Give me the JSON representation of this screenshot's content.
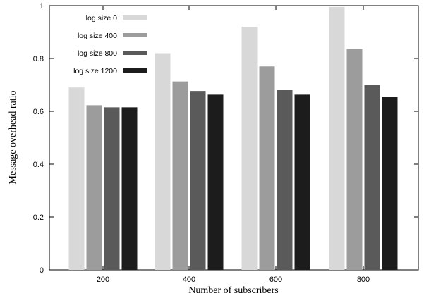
{
  "chart_data": {
    "type": "bar",
    "xlabel": "Number of subscribers",
    "ylabel": "Message overhead ratio",
    "categories": [
      "200",
      "400",
      "600",
      "800"
    ],
    "ylim": [
      0,
      1
    ],
    "yticks": [
      "0",
      "0.2",
      "0.4",
      "0.6",
      "0.8",
      "1"
    ],
    "legend_position": "top-left",
    "grid": false,
    "series": [
      {
        "name": "log size 0",
        "color": "#d8d8d8",
        "values": [
          0.69,
          0.82,
          0.92,
          0.995
        ]
      },
      {
        "name": "log size 400",
        "color": "#9c9c9c",
        "values": [
          0.623,
          0.713,
          0.77,
          0.836
        ]
      },
      {
        "name": "log size 800",
        "color": "#5a5a5a",
        "values": [
          0.615,
          0.677,
          0.68,
          0.7
        ]
      },
      {
        "name": "log size 1200",
        "color": "#1c1c1c",
        "values": [
          0.615,
          0.663,
          0.663,
          0.655
        ]
      }
    ]
  }
}
